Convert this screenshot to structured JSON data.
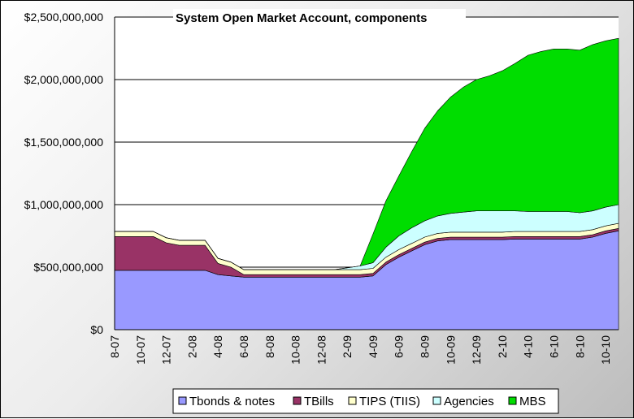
{
  "chart_data": {
    "type": "area",
    "stacked": true,
    "title": "System Open Market Account, components",
    "xlabel": "",
    "ylabel": "",
    "ylim": [
      0,
      2500000000
    ],
    "y_ticks": [
      "$0",
      "$500,000,000",
      "$1,000,000,000",
      "$1,500,000,000",
      "$2,000,000,000",
      "$2,500,000,000"
    ],
    "x_ticks": [
      "8-07",
      "10-07",
      "12-07",
      "2-08",
      "4-08",
      "6-08",
      "8-08",
      "10-08",
      "12-08",
      "2-09",
      "4-09",
      "6-09",
      "8-09",
      "10-09",
      "12-09",
      "2-10",
      "4-10",
      "6-10",
      "8-10",
      "10-10"
    ],
    "grid": "horizontal",
    "legend_position": "bottom",
    "x_months": [
      0,
      1,
      2,
      3,
      4,
      5,
      6,
      7,
      8,
      9,
      10,
      11,
      12,
      13,
      14,
      15,
      16,
      17,
      18,
      19,
      20,
      21,
      22,
      23,
      24,
      25,
      26,
      27,
      28,
      29,
      30,
      31,
      32,
      33,
      34,
      35,
      36,
      37,
      38,
      39
    ],
    "series": [
      {
        "name": "Tbonds & notes",
        "color": "#9999ff",
        "values": [
          475000000,
          475000000,
          475000000,
          475000000,
          475000000,
          475000000,
          475000000,
          475000000,
          440000000,
          430000000,
          420000000,
          420000000,
          420000000,
          420000000,
          420000000,
          420000000,
          420000000,
          420000000,
          420000000,
          420000000,
          430000000,
          520000000,
          580000000,
          630000000,
          680000000,
          710000000,
          720000000,
          720000000,
          720000000,
          720000000,
          720000000,
          725000000,
          725000000,
          725000000,
          725000000,
          725000000,
          725000000,
          740000000,
          770000000,
          790000000
        ]
      },
      {
        "name": "TBills",
        "color": "#993366",
        "values": [
          270000000,
          270000000,
          270000000,
          270000000,
          220000000,
          200000000,
          200000000,
          200000000,
          90000000,
          70000000,
          20000000,
          20000000,
          20000000,
          20000000,
          20000000,
          20000000,
          20000000,
          20000000,
          20000000,
          20000000,
          20000000,
          20000000,
          20000000,
          20000000,
          20000000,
          20000000,
          20000000,
          20000000,
          20000000,
          20000000,
          20000000,
          20000000,
          20000000,
          20000000,
          20000000,
          20000000,
          20000000,
          20000000,
          20000000,
          20000000
        ]
      },
      {
        "name": "TIPS (TIIS)",
        "color": "#ffffcc",
        "values": [
          40000000,
          40000000,
          40000000,
          40000000,
          40000000,
          40000000,
          40000000,
          40000000,
          40000000,
          40000000,
          40000000,
          40000000,
          40000000,
          40000000,
          40000000,
          40000000,
          40000000,
          40000000,
          40000000,
          40000000,
          40000000,
          40000000,
          40000000,
          40000000,
          40000000,
          40000000,
          40000000,
          40000000,
          40000000,
          40000000,
          40000000,
          40000000,
          40000000,
          40000000,
          40000000,
          40000000,
          40000000,
          40000000,
          40000000,
          40000000
        ]
      },
      {
        "name": "Agencies",
        "color": "#ccffff",
        "values": [
          0,
          0,
          0,
          0,
          0,
          0,
          0,
          0,
          0,
          0,
          0,
          0,
          0,
          0,
          0,
          0,
          0,
          0,
          15000000,
          30000000,
          45000000,
          80000000,
          110000000,
          125000000,
          130000000,
          140000000,
          150000000,
          160000000,
          170000000,
          170000000,
          170000000,
          165000000,
          160000000,
          160000000,
          160000000,
          160000000,
          150000000,
          150000000,
          150000000,
          150000000
        ]
      },
      {
        "name": "MBS",
        "color": "#00dd00",
        "values": [
          0,
          0,
          0,
          0,
          0,
          0,
          0,
          0,
          0,
          0,
          0,
          0,
          0,
          0,
          0,
          0,
          0,
          0,
          0,
          0,
          230000000,
          370000000,
          480000000,
          610000000,
          740000000,
          840000000,
          930000000,
          1000000000,
          1050000000,
          1080000000,
          1120000000,
          1180000000,
          1250000000,
          1280000000,
          1300000000,
          1300000000,
          1300000000,
          1330000000,
          1330000000,
          1330000000
        ]
      }
    ]
  }
}
